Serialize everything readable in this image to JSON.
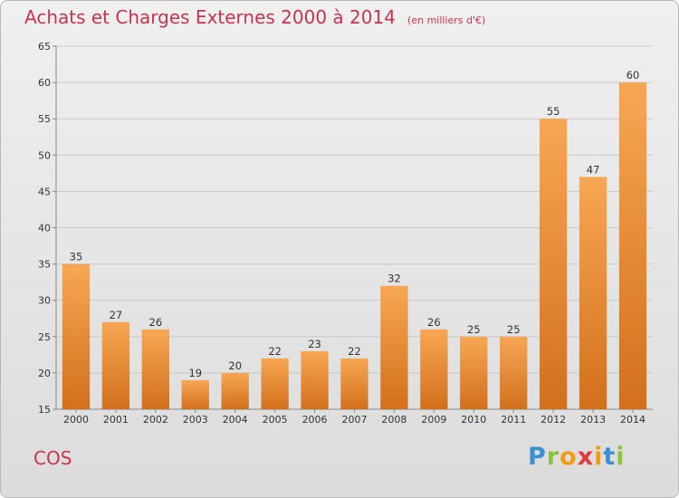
{
  "header": {
    "title": "Achats et Charges Externes 2000 à 2014",
    "subtitle": "(en milliers d'€)"
  },
  "footer": {
    "commune": "COS",
    "brand": [
      "P",
      "r",
      "o",
      "x",
      "i",
      "t",
      "i"
    ],
    "brand_colors": [
      "#3a8fd1",
      "#8bc53f",
      "#f39c12",
      "#e33a3a",
      "#f39c12",
      "#3a8fd1",
      "#8bc53f"
    ]
  },
  "chart_data": {
    "type": "bar",
    "categories": [
      "2000",
      "2001",
      "2002",
      "2003",
      "2004",
      "2005",
      "2006",
      "2007",
      "2008",
      "2009",
      "2010",
      "2011",
      "2012",
      "2013",
      "2014"
    ],
    "values": [
      35,
      27,
      26,
      19,
      20,
      22,
      23,
      22,
      32,
      26,
      25,
      25,
      55,
      47,
      60
    ],
    "ylim": [
      15,
      65
    ],
    "yticks": [
      15,
      20,
      25,
      30,
      35,
      40,
      45,
      50,
      55,
      60,
      65
    ],
    "grid": true,
    "bar_color_light": "#f7a754",
    "bar_color_dark": "#d2701c"
  }
}
